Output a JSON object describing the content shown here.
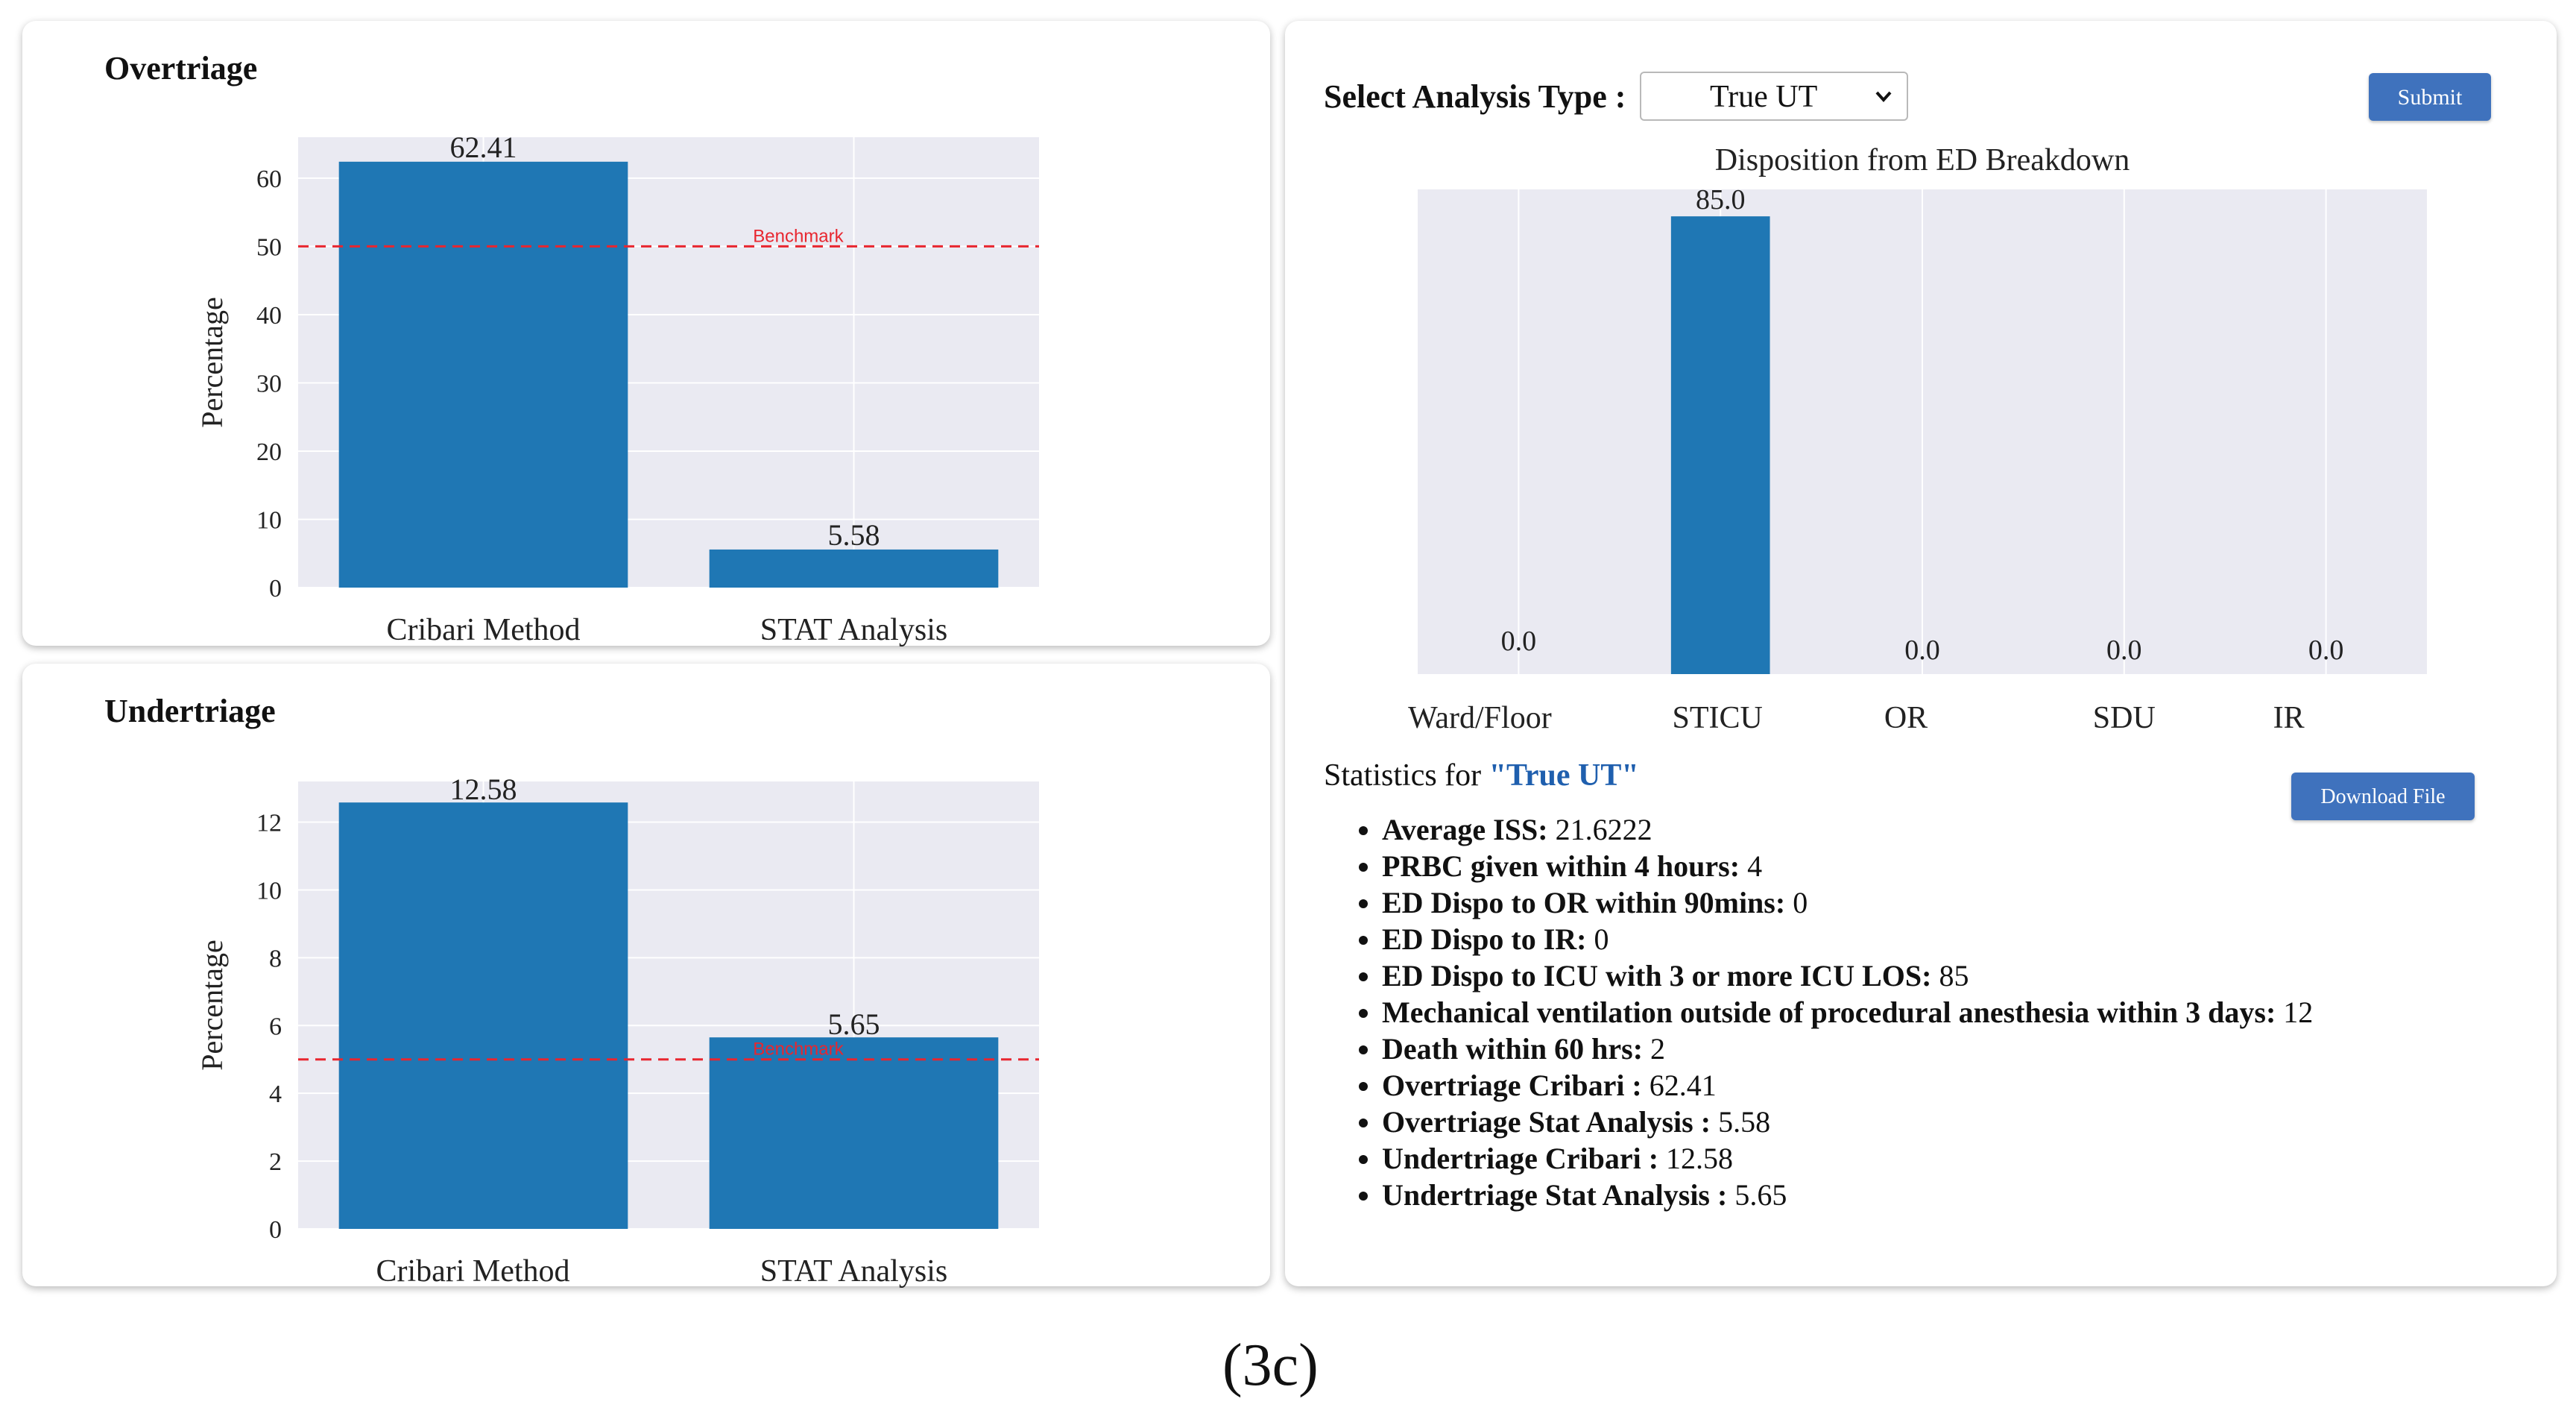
{
  "overtriage": {
    "title": "Overtriage",
    "chart_data": {
      "type": "bar",
      "title": "Overtriage",
      "categories": [
        "Cribari Method",
        "STAT Analysis"
      ],
      "values": [
        62.41,
        5.58
      ],
      "value_labels": [
        "62.41",
        "5.58"
      ],
      "ylabel": "Percentage",
      "xlabel": "",
      "ylim": [
        0,
        66
      ],
      "yticks": [
        0,
        10,
        20,
        30,
        40,
        50,
        60
      ],
      "benchmark": {
        "value": 50,
        "label": "Benchmark",
        "color": "#e8262f"
      },
      "bar_color": "#1f77b4",
      "plot_bg": "#eaeaf2"
    }
  },
  "undertriage": {
    "title": "Undertriage",
    "chart_data": {
      "type": "bar",
      "title": "Undertriage",
      "categories": [
        "Cribari Method",
        "STAT Analysis"
      ],
      "values": [
        12.58,
        5.65
      ],
      "value_labels": [
        "12.58",
        "5.65"
      ],
      "ylabel": "Percentage",
      "xlabel": "",
      "ylim": [
        0,
        13.2
      ],
      "yticks": [
        0,
        2,
        4,
        6,
        8,
        10,
        12
      ],
      "benchmark": {
        "value": 5,
        "label": "Benchmark",
        "color": "#e8262f"
      },
      "bar_color": "#1f77b4",
      "plot_bg": "#eaeaf2"
    }
  },
  "analysis": {
    "label": "Select Analysis Type :",
    "selected": "True UT",
    "submit_label": "Submit"
  },
  "disposition": {
    "chart_data": {
      "type": "bar",
      "title": "Disposition from ED Breakdown",
      "categories": [
        "Ward/Floor",
        "STICU",
        "OR",
        "SDU",
        "IR"
      ],
      "values": [
        0.0,
        85.0,
        0.0,
        0.0,
        0.0
      ],
      "value_labels": [
        "0.0",
        "85.0",
        "0.0",
        "0.0",
        "0.0"
      ],
      "xlabel": "",
      "ylabel": "",
      "ylim": [
        0,
        90
      ],
      "bar_color": "#1f77b4",
      "plot_bg": "#eaeaf2"
    }
  },
  "stats": {
    "heading_prefix": "Statistics for ",
    "heading_quoted": "\"True UT\"",
    "download_label": "Download File",
    "items": [
      {
        "label": "Average ISS:",
        "value": " 21.6222"
      },
      {
        "label": "PRBC given within 4 hours:",
        "value": " 4"
      },
      {
        "label": "ED Dispo to OR within 90mins:",
        "value": " 0"
      },
      {
        "label": "ED Dispo to IR:",
        "value": " 0"
      },
      {
        "label": "ED Dispo to ICU with 3 or more ICU LOS:",
        "value": " 85"
      },
      {
        "label": "Mechanical ventilation outside of procedural anesthesia within 3 days:",
        "value": " 12"
      },
      {
        "label": "Death within 60 hrs:",
        "value": " 2"
      },
      {
        "label": "Overtriage Cribari :",
        "value": " 62.41"
      },
      {
        "label": "Overtriage Stat Analysis :",
        "value": " 5.58"
      },
      {
        "label": "Undertriage Cribari :",
        "value": " 12.58"
      },
      {
        "label": "Undertriage Stat Analysis :",
        "value": " 5.65"
      }
    ]
  },
  "caption": "(3c)"
}
